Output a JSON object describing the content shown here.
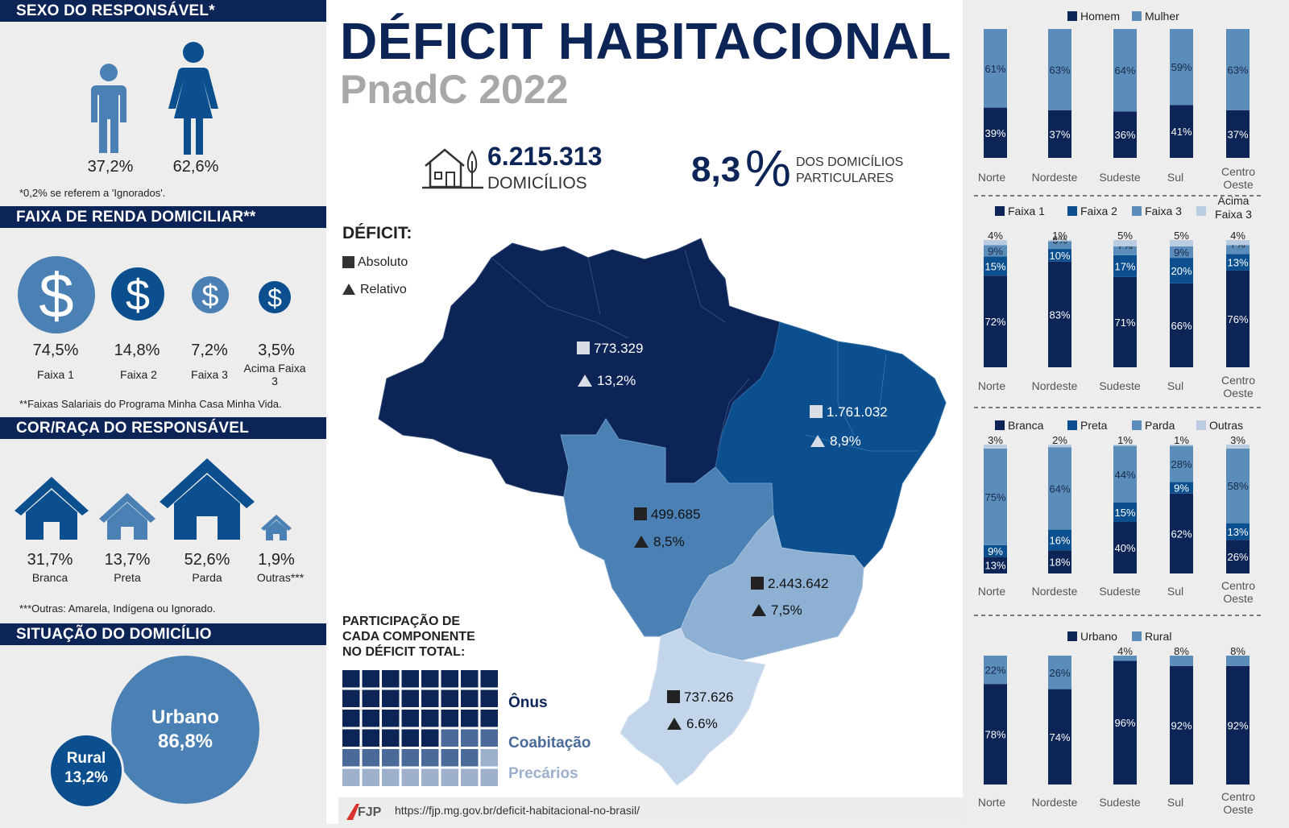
{
  "left": {
    "sexo": {
      "header": "SEXO DO RESPONSÁVEL*",
      "items": [
        {
          "label": "37,2%",
          "value": 37.2
        },
        {
          "label": "62,6%",
          "value": 62.6
        }
      ],
      "note": "*0,2% se referem a 'Ignorados'."
    },
    "renda": {
      "header": "FAIXA DE RENDA DOMICILIAR**",
      "items": [
        {
          "pct": "74,5%",
          "name": "Faixa 1",
          "value": 74.5
        },
        {
          "pct": "14,8%",
          "name": "Faixa 2",
          "value": 14.8
        },
        {
          "pct": "7,2%",
          "name": "Faixa 3",
          "value": 7.2
        },
        {
          "pct": "3,5%",
          "name": "Acima Faixa 3",
          "value": 3.5
        }
      ],
      "note": "**Faixas Salariais do Programa Minha Casa Minha Vida."
    },
    "cor": {
      "header": "COR/RAÇA DO RESPONSÁVEL",
      "items": [
        {
          "pct": "31,7%",
          "name": "Branca",
          "value": 31.7
        },
        {
          "pct": "13,7%",
          "name": "Preta",
          "value": 13.7
        },
        {
          "pct": "52,6%",
          "name": "Parda",
          "value": 52.6
        },
        {
          "pct": "1,9%",
          "name": "Outras***",
          "value": 1.9
        }
      ],
      "note": "***Outras: Amarela, Indígena ou Ignorado."
    },
    "situacao": {
      "header": "SITUAÇÃO DO DOMICÍLIO",
      "urbano_label": "Urbano",
      "urbano_pct": "86,8%",
      "rural_label": "Rural",
      "rural_pct": "13,2%"
    }
  },
  "center": {
    "title": "DÉFICIT HABITACIONAL",
    "subtitle": "PnadC 2022",
    "kpi_domicilios_num": "6.215.313",
    "kpi_domicilios_txt": "DOMICÍLIOS",
    "kpi_pct_num": "8,3",
    "kpi_pct_sign": "%",
    "kpi_pct_txt_1": "DOS DOMICÍLIOS",
    "kpi_pct_txt_2": "PARTICULARES",
    "deficit_label": "DÉFICIT:",
    "legend_abs": "Absoluto",
    "legend_rel": "Relativo",
    "regions": [
      {
        "name": "Norte",
        "absolute": "773.329",
        "relative": "13,2%",
        "color": "#0d2457"
      },
      {
        "name": "Nordeste",
        "absolute": "1.761.032",
        "relative": "8,9%",
        "color": "#0b4f8f"
      },
      {
        "name": "Centro-Oeste",
        "absolute": "499.685",
        "relative": "8,5%",
        "color": "#4a80b4"
      },
      {
        "name": "Sudeste",
        "absolute": "2.443.642",
        "relative": "7,5%",
        "color": "#8eb0d3"
      },
      {
        "name": "Sul",
        "absolute": "737.626",
        "relative": "6.6%",
        "color": "#c3d5ea"
      }
    ],
    "participacao_title_1": "PARTICIPAÇÃO DE",
    "participacao_title_2": "CADA COMPONENTE",
    "participacao_title_3": "NO DÉFICIT TOTAL:",
    "components": [
      {
        "name": "Ônus",
        "cells": 29,
        "color": "#0d2457"
      },
      {
        "name": "Coabitação",
        "cells": 10,
        "color": "#4a6a99"
      },
      {
        "name": "Precários",
        "cells": 9,
        "color": "#9db0cc"
      }
    ],
    "footer_logo": "FJP",
    "footer_url": "https://fjp.mg.gov.br/deficit-habitacional-no-brasil/"
  },
  "chart_data": [
    {
      "type": "bar",
      "stacked": true,
      "categories": [
        "Norte",
        "Nordeste",
        "Sudeste",
        "Sul",
        "Centro Oeste"
      ],
      "series": [
        {
          "name": "Homem",
          "color": "#0d2457",
          "values": [
            39,
            37,
            36,
            41,
            37
          ]
        },
        {
          "name": "Mulher",
          "color": "#5b8dbb",
          "values": [
            61,
            63,
            64,
            59,
            63
          ]
        }
      ]
    },
    {
      "type": "bar",
      "stacked": true,
      "categories": [
        "Norte",
        "Nordeste",
        "Sudeste",
        "Sul",
        "Centro Oeste"
      ],
      "series": [
        {
          "name": "Faixa 1",
          "color": "#0d2457",
          "values": [
            72,
            83,
            71,
            66,
            76
          ]
        },
        {
          "name": "Faixa 2",
          "color": "#0b4f8f",
          "values": [
            15,
            10,
            17,
            20,
            13
          ]
        },
        {
          "name": "Faixa 3",
          "color": "#5b8dbb",
          "values": [
            9,
            6,
            7,
            9,
            7
          ]
        },
        {
          "name": "Acima Faixa 3",
          "color": "#b9cce2",
          "values": [
            4,
            1,
            5,
            5,
            4
          ]
        }
      ]
    },
    {
      "type": "bar",
      "stacked": true,
      "categories": [
        "Norte",
        "Nordeste",
        "Sudeste",
        "Sul",
        "Centro Oeste"
      ],
      "series": [
        {
          "name": "Branca",
          "color": "#0d2457",
          "values": [
            13,
            18,
            40,
            62,
            26
          ]
        },
        {
          "name": "Preta",
          "color": "#0b4f8f",
          "values": [
            9,
            16,
            15,
            9,
            13
          ]
        },
        {
          "name": "Parda",
          "color": "#5b8dbb",
          "values": [
            75,
            64,
            44,
            28,
            58
          ]
        },
        {
          "name": "Outras",
          "color": "#b9cce2",
          "values": [
            3,
            2,
            1,
            1,
            3
          ]
        }
      ]
    },
    {
      "type": "bar",
      "stacked": true,
      "categories": [
        "Norte",
        "Nordeste",
        "Sudeste",
        "Sul",
        "Centro Oeste"
      ],
      "series": [
        {
          "name": "Urbano",
          "color": "#0d2457",
          "values": [
            78,
            74,
            96,
            92,
            92
          ]
        },
        {
          "name": "Rural",
          "color": "#5b8dbb",
          "values": [
            22,
            26,
            4,
            8,
            8
          ]
        }
      ]
    }
  ]
}
